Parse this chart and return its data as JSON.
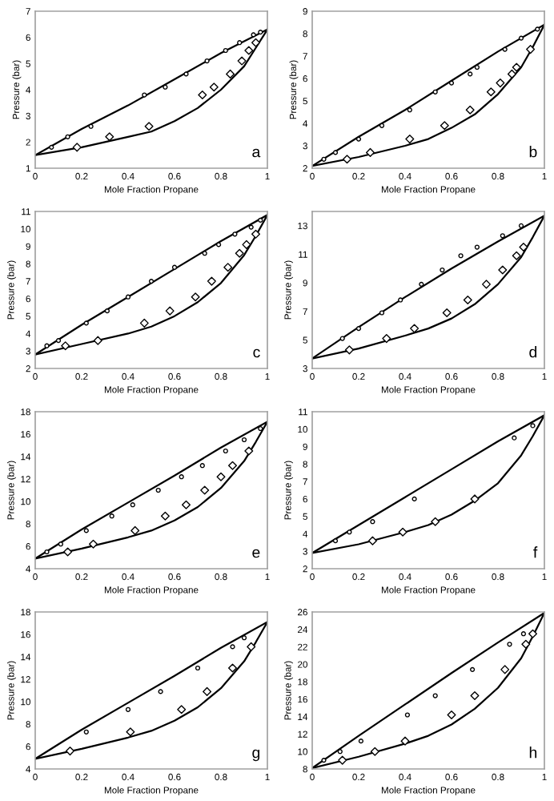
{
  "chart_data": [
    {
      "type": "line",
      "xlabel": "Mole Fraction Propane",
      "ylabel": "Pressure (bar)",
      "annotations": [
        "a"
      ],
      "xlim": [
        0,
        1
      ],
      "xticks": [
        0,
        0.2,
        0.4,
        0.6,
        0.8,
        1
      ],
      "ylim": [
        1,
        7
      ],
      "yticks": [
        1,
        2,
        3,
        4,
        5,
        6,
        7
      ],
      "series": [
        {
          "marker": "none",
          "color": "#000000",
          "x": [
            0,
            0.2,
            0.4,
            0.6,
            0.8,
            1
          ],
          "values": [
            1.5,
            2.5,
            3.4,
            4.4,
            5.4,
            6.3
          ]
        },
        {
          "marker": "none",
          "color": "#000000",
          "x": [
            0,
            0.2,
            0.4,
            0.5,
            0.6,
            0.7,
            0.8,
            0.9,
            0.95,
            1
          ],
          "values": [
            1.5,
            1.8,
            2.2,
            2.4,
            2.8,
            3.3,
            4.0,
            4.9,
            5.6,
            6.3
          ]
        },
        {
          "type": "scatter",
          "marker": "diamond",
          "color": "#000000",
          "x": [
            0.18,
            0.32,
            0.49,
            0.72,
            0.77,
            0.84,
            0.89,
            0.92,
            0.95
          ],
          "values": [
            1.8,
            2.2,
            2.6,
            3.8,
            4.1,
            4.6,
            5.1,
            5.5,
            5.8
          ]
        },
        {
          "type": "scatter",
          "marker": "circle",
          "color": "#000000",
          "x": [
            0.07,
            0.14,
            0.24,
            0.47,
            0.56,
            0.65,
            0.74,
            0.82,
            0.88,
            0.94,
            0.97
          ],
          "values": [
            1.8,
            2.2,
            2.6,
            3.8,
            4.1,
            4.6,
            5.1,
            5.5,
            5.8,
            6.1,
            6.2
          ]
        }
      ]
    },
    {
      "type": "line",
      "xlabel": "Mole Fraction Propane",
      "ylabel": "Pressure (bar)",
      "annotations": [
        "b"
      ],
      "xlim": [
        0,
        1
      ],
      "xticks": [
        0,
        0.2,
        0.4,
        0.6,
        0.8,
        1
      ],
      "ylim": [
        2,
        9
      ],
      "yticks": [
        2,
        3,
        4,
        5,
        6,
        7,
        8,
        9
      ],
      "series": [
        {
          "marker": "none",
          "color": "#000000",
          "x": [
            0,
            0.2,
            0.4,
            0.6,
            0.8,
            1
          ],
          "values": [
            2.1,
            3.4,
            4.6,
            5.9,
            7.2,
            8.4
          ]
        },
        {
          "marker": "none",
          "color": "#000000",
          "x": [
            0,
            0.2,
            0.4,
            0.5,
            0.6,
            0.7,
            0.8,
            0.9,
            0.95,
            1
          ],
          "values": [
            2.1,
            2.5,
            3.0,
            3.3,
            3.8,
            4.4,
            5.3,
            6.5,
            7.4,
            8.4
          ]
        },
        {
          "type": "scatter",
          "marker": "diamond",
          "color": "#000000",
          "x": [
            0.15,
            0.25,
            0.42,
            0.57,
            0.68,
            0.77,
            0.81,
            0.86,
            0.88,
            0.94
          ],
          "values": [
            2.4,
            2.7,
            3.3,
            3.9,
            4.6,
            5.4,
            5.8,
            6.2,
            6.5,
            7.3
          ]
        },
        {
          "type": "scatter",
          "marker": "circle",
          "color": "#000000",
          "x": [
            0.05,
            0.1,
            0.2,
            0.3,
            0.42,
            0.53,
            0.6,
            0.68,
            0.71,
            0.83,
            0.9,
            0.97
          ],
          "values": [
            2.4,
            2.7,
            3.3,
            3.9,
            4.6,
            5.4,
            5.8,
            6.2,
            6.5,
            7.3,
            7.8,
            8.2
          ]
        }
      ]
    },
    {
      "type": "line",
      "xlabel": "Mole Fraction Propane",
      "ylabel": "Pressure (bar)",
      "annotations": [
        "c"
      ],
      "xlim": [
        0,
        1
      ],
      "xticks": [
        0,
        0.2,
        0.4,
        0.6,
        0.8,
        1
      ],
      "ylim": [
        2,
        11
      ],
      "yticks": [
        2,
        3,
        4,
        5,
        6,
        7,
        8,
        9,
        10,
        11
      ],
      "series": [
        {
          "marker": "none",
          "color": "#000000",
          "x": [
            0,
            0.2,
            0.4,
            0.6,
            0.8,
            1
          ],
          "values": [
            2.8,
            4.5,
            6.1,
            7.7,
            9.3,
            10.8
          ]
        },
        {
          "marker": "none",
          "color": "#000000",
          "x": [
            0,
            0.2,
            0.4,
            0.5,
            0.6,
            0.7,
            0.8,
            0.9,
            0.95,
            1
          ],
          "values": [
            2.8,
            3.4,
            4.0,
            4.4,
            5.0,
            5.8,
            6.9,
            8.5,
            9.6,
            10.8
          ]
        },
        {
          "type": "scatter",
          "marker": "diamond",
          "color": "#000000",
          "x": [
            0.13,
            0.27,
            0.47,
            0.58,
            0.69,
            0.76,
            0.83,
            0.88,
            0.91,
            0.95
          ],
          "values": [
            3.3,
            3.6,
            4.6,
            5.3,
            6.1,
            7.0,
            7.8,
            8.6,
            9.1,
            9.7
          ]
        },
        {
          "type": "scatter",
          "marker": "circle",
          "color": "#000000",
          "x": [
            0.05,
            0.1,
            0.22,
            0.31,
            0.4,
            0.5,
            0.6,
            0.73,
            0.79,
            0.86,
            0.93,
            0.97
          ],
          "values": [
            3.3,
            3.6,
            4.6,
            5.3,
            6.1,
            7.0,
            7.8,
            8.6,
            9.1,
            9.7,
            10.1,
            10.5
          ]
        }
      ]
    },
    {
      "type": "line",
      "xlabel": "Mole Fraction Propane",
      "ylabel": "Pressure (bar)",
      "annotations": [
        "d"
      ],
      "xlim": [
        0,
        1
      ],
      "xticks": [
        0,
        0.2,
        0.4,
        0.6,
        0.8,
        1
      ],
      "ylim": [
        3,
        14
      ],
      "yticks": [
        3,
        5,
        7,
        9,
        11,
        13
      ],
      "series": [
        {
          "marker": "none",
          "color": "#000000",
          "x": [
            0,
            0.2,
            0.4,
            0.6,
            0.8,
            1
          ],
          "values": [
            3.7,
            5.9,
            8.0,
            10.0,
            11.9,
            13.7
          ]
        },
        {
          "marker": "none",
          "color": "#000000",
          "x": [
            0,
            0.2,
            0.4,
            0.5,
            0.6,
            0.7,
            0.8,
            0.9,
            0.95,
            1
          ],
          "values": [
            3.7,
            4.4,
            5.3,
            5.8,
            6.5,
            7.5,
            8.9,
            10.8,
            12.2,
            13.7
          ]
        },
        {
          "type": "scatter",
          "marker": "diamond",
          "color": "#000000",
          "x": [
            0.16,
            0.32,
            0.44,
            0.58,
            0.67,
            0.75,
            0.82,
            0.88,
            0.91
          ],
          "values": [
            4.3,
            5.1,
            5.8,
            6.9,
            7.8,
            8.9,
            9.9,
            10.9,
            11.5
          ]
        },
        {
          "type": "scatter",
          "marker": "circle",
          "color": "#000000",
          "x": [
            0.13,
            0.2,
            0.3,
            0.38,
            0.47,
            0.56,
            0.64,
            0.71,
            0.82,
            0.9
          ],
          "values": [
            5.1,
            5.8,
            6.9,
            7.8,
            8.9,
            9.9,
            10.9,
            11.5,
            12.3,
            13.0
          ]
        }
      ]
    },
    {
      "type": "line",
      "xlabel": "Mole Fraction Propane",
      "ylabel": "Pressure (bar)",
      "annotations": [
        "e"
      ],
      "xlim": [
        0,
        1
      ],
      "xticks": [
        0,
        0.2,
        0.4,
        0.6,
        0.8,
        1
      ],
      "ylim": [
        4,
        18
      ],
      "yticks": [
        4,
        6,
        8,
        10,
        12,
        14,
        16,
        18
      ],
      "series": [
        {
          "marker": "none",
          "color": "#000000",
          "x": [
            0,
            0.2,
            0.4,
            0.6,
            0.8,
            1
          ],
          "values": [
            4.9,
            7.5,
            9.9,
            12.3,
            14.8,
            17.1
          ]
        },
        {
          "marker": "none",
          "color": "#000000",
          "x": [
            0,
            0.2,
            0.4,
            0.5,
            0.6,
            0.7,
            0.8,
            0.9,
            0.95,
            1
          ],
          "values": [
            4.9,
            5.8,
            6.8,
            7.4,
            8.3,
            9.5,
            11.2,
            13.6,
            15.3,
            17.1
          ]
        },
        {
          "type": "scatter",
          "marker": "diamond",
          "color": "#000000",
          "x": [
            0.14,
            0.25,
            0.43,
            0.56,
            0.65,
            0.73,
            0.8,
            0.85,
            0.92
          ],
          "values": [
            5.5,
            6.2,
            7.4,
            8.7,
            9.7,
            11.0,
            12.2,
            13.2,
            14.5
          ]
        },
        {
          "type": "scatter",
          "marker": "circle",
          "color": "#000000",
          "x": [
            0.05,
            0.11,
            0.22,
            0.33,
            0.42,
            0.53,
            0.63,
            0.72,
            0.82,
            0.9,
            0.97
          ],
          "values": [
            5.5,
            6.2,
            7.4,
            8.7,
            9.7,
            11.0,
            12.2,
            13.2,
            14.5,
            15.5,
            16.5
          ]
        }
      ]
    },
    {
      "type": "line",
      "xlabel": "Mole Fraction Propane",
      "ylabel": "Pressure (bar)",
      "annotations": [
        "f"
      ],
      "xlim": [
        0,
        1
      ],
      "xticks": [
        0,
        0.2,
        0.4,
        0.6,
        0.8,
        1
      ],
      "ylim": [
        2,
        11
      ],
      "yticks": [
        2,
        3,
        4,
        5,
        6,
        7,
        8,
        9,
        10,
        11
      ],
      "series": [
        {
          "marker": "none",
          "color": "#000000",
          "x": [
            0,
            0.2,
            0.4,
            0.6,
            0.8,
            1
          ],
          "values": [
            2.9,
            4.5,
            6.1,
            7.7,
            9.3,
            10.8
          ]
        },
        {
          "marker": "none",
          "color": "#000000",
          "x": [
            0,
            0.2,
            0.4,
            0.5,
            0.6,
            0.7,
            0.8,
            0.9,
            0.95,
            1
          ],
          "values": [
            2.9,
            3.4,
            4.1,
            4.5,
            5.1,
            5.9,
            6.9,
            8.5,
            9.6,
            10.8
          ]
        },
        {
          "type": "scatter",
          "marker": "diamond",
          "color": "#000000",
          "x": [
            0.26,
            0.39,
            0.53,
            0.7
          ],
          "values": [
            3.6,
            4.1,
            4.7,
            6.0
          ]
        },
        {
          "type": "scatter",
          "marker": "circle",
          "color": "#000000",
          "x": [
            0.1,
            0.16,
            0.26,
            0.44,
            0.87,
            0.95
          ],
          "values": [
            3.6,
            4.1,
            4.7,
            6.0,
            9.5,
            10.2
          ]
        }
      ]
    },
    {
      "type": "line",
      "xlabel": "Mole Fraction Propane",
      "ylabel": "Pressure (bar)",
      "annotations": [
        "g"
      ],
      "xlim": [
        0,
        1
      ],
      "xticks": [
        0,
        0.2,
        0.4,
        0.6,
        0.8,
        1
      ],
      "ylim": [
        4,
        18
      ],
      "yticks": [
        4,
        6,
        8,
        10,
        12,
        14,
        16,
        18
      ],
      "series": [
        {
          "marker": "none",
          "color": "#000000",
          "x": [
            0,
            0.2,
            0.4,
            0.6,
            0.8,
            1
          ],
          "values": [
            4.9,
            7.5,
            9.9,
            12.3,
            14.8,
            17.1
          ]
        },
        {
          "marker": "none",
          "color": "#000000",
          "x": [
            0,
            0.2,
            0.4,
            0.5,
            0.6,
            0.7,
            0.8,
            0.9,
            0.95,
            1
          ],
          "values": [
            4.9,
            5.8,
            6.8,
            7.4,
            8.3,
            9.5,
            11.2,
            13.6,
            15.3,
            17.1
          ]
        },
        {
          "type": "scatter",
          "marker": "diamond",
          "color": "#000000",
          "x": [
            0.15,
            0.41,
            0.63,
            0.74,
            0.85,
            0.93
          ],
          "values": [
            5.6,
            7.3,
            9.3,
            10.9,
            13.0,
            14.9
          ]
        },
        {
          "type": "scatter",
          "marker": "circle",
          "color": "#000000",
          "x": [
            0.22,
            0.4,
            0.54,
            0.7,
            0.85,
            0.9
          ],
          "values": [
            7.3,
            9.3,
            10.9,
            13.0,
            14.9,
            15.7
          ]
        }
      ]
    },
    {
      "type": "line",
      "xlabel": "Mole Fraction Propane",
      "ylabel": "Pressure (bar)",
      "annotations": [
        "h"
      ],
      "xlim": [
        0,
        1
      ],
      "xticks": [
        0,
        0.2,
        0.4,
        0.6,
        0.8,
        1
      ],
      "ylim": [
        8,
        26
      ],
      "yticks": [
        8,
        10,
        12,
        14,
        16,
        18,
        20,
        22,
        24,
        26
      ],
      "series": [
        {
          "marker": "none",
          "color": "#000000",
          "x": [
            0,
            0.2,
            0.4,
            0.6,
            0.8,
            1
          ],
          "values": [
            8.1,
            11.8,
            15.4,
            19.0,
            22.5,
            25.9
          ]
        },
        {
          "marker": "none",
          "color": "#000000",
          "x": [
            0,
            0.2,
            0.4,
            0.5,
            0.6,
            0.7,
            0.8,
            0.9,
            0.95,
            1
          ],
          "values": [
            8.1,
            9.4,
            10.9,
            11.8,
            13.1,
            14.9,
            17.3,
            20.7,
            23.2,
            25.9
          ]
        },
        {
          "type": "scatter",
          "marker": "diamond",
          "color": "#000000",
          "x": [
            0.13,
            0.27,
            0.4,
            0.6,
            0.7,
            0.83,
            0.92,
            0.95
          ],
          "values": [
            9.0,
            10.0,
            11.2,
            14.2,
            16.4,
            19.4,
            22.3,
            23.5
          ]
        },
        {
          "type": "scatter",
          "marker": "circle",
          "color": "#000000",
          "x": [
            0.05,
            0.12,
            0.21,
            0.41,
            0.53,
            0.69,
            0.85,
            0.91
          ],
          "values": [
            9.0,
            10.0,
            11.2,
            14.2,
            16.4,
            19.4,
            22.3,
            23.5
          ]
        }
      ]
    }
  ]
}
